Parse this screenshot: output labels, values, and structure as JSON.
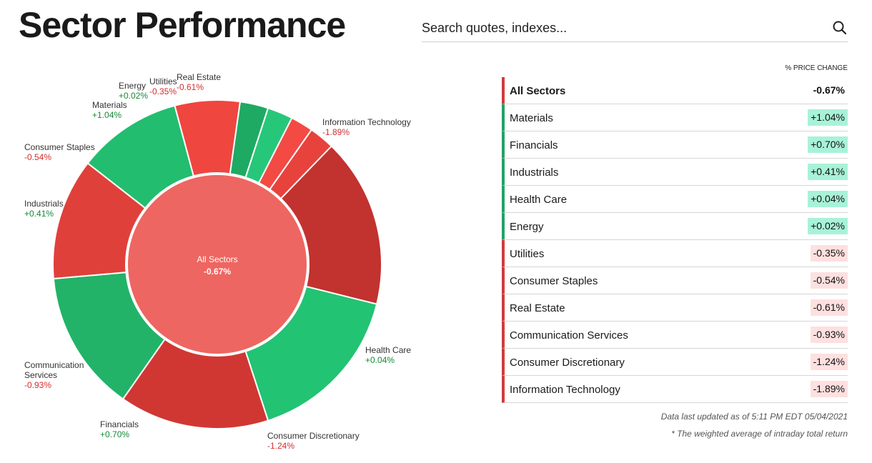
{
  "header": {
    "title": "Sector Performance"
  },
  "search": {
    "placeholder": "Search quotes, indexes..."
  },
  "chart_data": {
    "type": "pie",
    "center": {
      "label": "All Sectors",
      "value": "-0.67%"
    },
    "slices": [
      {
        "name": "Information Technology",
        "change": "-1.89%",
        "color": "#c2322f"
      },
      {
        "name": "Health Care",
        "change": "+0.04%",
        "color": "#22c373"
      },
      {
        "name": "Consumer Discretionary",
        "change": "-1.24%",
        "color": "#d13732"
      },
      {
        "name": "Financials",
        "change": "+0.70%",
        "color": "#22b368"
      },
      {
        "name": "Communication Services",
        "change": "-0.93%",
        "color": "#e0403a"
      },
      {
        "name": "Industrials",
        "change": "+0.41%",
        "color": "#22bd6f"
      },
      {
        "name": "Consumer Staples",
        "change": "-0.54%",
        "color": "#ef463f"
      },
      {
        "name": "Materials",
        "change": "+1.04%",
        "color": "#1eaa62"
      },
      {
        "name": "Energy",
        "change": "+0.02%",
        "color": "#27c77a"
      },
      {
        "name": "Utilities",
        "change": "-0.35%",
        "color": "#f34a44"
      },
      {
        "name": "Real Estate",
        "change": "-0.61%",
        "color": "#e8423d"
      }
    ]
  },
  "table": {
    "header": "% PRICE CHANGE",
    "rows": [
      {
        "name": "All Sectors",
        "value": "-0.67%"
      },
      {
        "name": "Materials",
        "value": "+1.04%"
      },
      {
        "name": "Financials",
        "value": "+0.70%"
      },
      {
        "name": "Industrials",
        "value": "+0.41%"
      },
      {
        "name": "Health Care",
        "value": "+0.04%"
      },
      {
        "name": "Energy",
        "value": "+0.02%"
      },
      {
        "name": "Utilities",
        "value": "-0.35%"
      },
      {
        "name": "Consumer Staples",
        "value": "-0.54%"
      },
      {
        "name": "Real Estate",
        "value": "-0.61%"
      },
      {
        "name": "Communication Services",
        "value": "-0.93%"
      },
      {
        "name": "Consumer Discretionary",
        "value": "-1.24%"
      },
      {
        "name": "Information Technology",
        "value": "-1.89%"
      }
    ]
  },
  "footer": {
    "updated": "Data last updated as of 5:11 PM EDT 05/04/2021",
    "note": "* The weighted average of intraday total return"
  },
  "colors": {
    "positive_text": "#138a36",
    "negative_text": "#d32f2f",
    "center_fill": "#ee6661"
  }
}
